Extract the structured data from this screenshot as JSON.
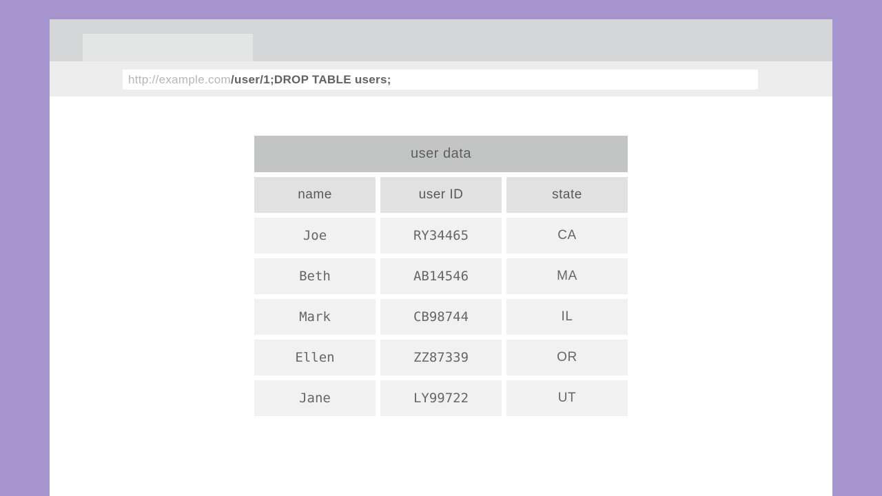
{
  "palette": {
    "backdrop_purple": "#a794ce",
    "chrome_gray": "#d5d6d7",
    "tab_gray": "#e4e5e5",
    "urlbar_gray": "#ededee",
    "table_title_gray": "#c3c4c4",
    "column_header_gray": "#e1e1e2",
    "cell_gray": "#f1f1f2",
    "text_dark": "#58585a",
    "url_muted": "#b6b6b8"
  },
  "browser": {
    "url": {
      "domain": "http://example.com",
      "path": "/user/1;DROP TABLE users;"
    }
  },
  "table": {
    "title": "user data",
    "columns": [
      "name",
      "user ID",
      "state"
    ],
    "rows": [
      [
        "Joe",
        "RY34465",
        "CA"
      ],
      [
        "Beth",
        "AB14546",
        "MA"
      ],
      [
        "Mark",
        "CB98744",
        "IL"
      ],
      [
        "Ellen",
        "ZZ87339",
        "OR"
      ],
      [
        "Jane",
        "LY99722",
        "UT"
      ]
    ]
  }
}
